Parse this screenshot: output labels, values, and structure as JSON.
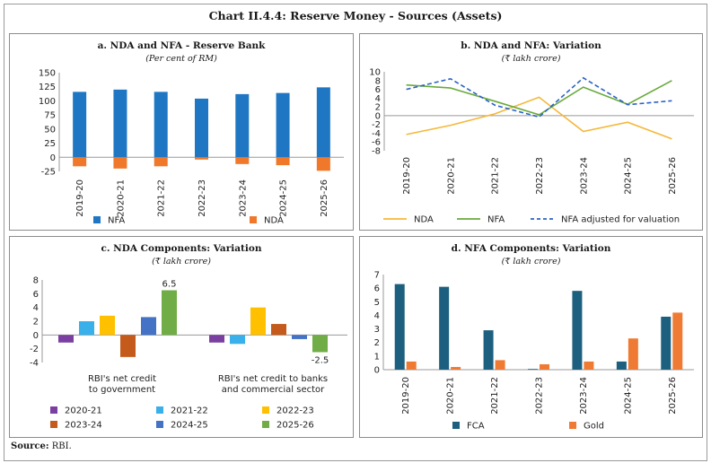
{
  "title": "Chart II.4.4: Reserve Money - Sources (Assets)",
  "source_label": "Source:",
  "source_text": "RBI.",
  "colors": {
    "nfa": "#1f77c4",
    "nda": "#f0782a",
    "nda_line": "#f4b83a",
    "nfa_line": "#6aaa3c",
    "nfa_adj": "#2b62c4",
    "fca": "#1d5f7e",
    "gold": "#ef7a33",
    "c1": "#7a3fa0",
    "c2": "#3ab0ea",
    "c3": "#ffc000",
    "c4": "#c45a1c",
    "c5": "#4472c4",
    "c6": "#70ad47"
  },
  "chart_data": [
    {
      "id": "a",
      "type": "bar",
      "title": "a. NDA and NFA - Reserve Bank",
      "subtitle": "(Per cent of RM)",
      "categories": [
        "2019-20",
        "2020-21",
        "2021-22",
        "2022-23",
        "2023-24",
        "2024-25",
        "2025-26"
      ],
      "series": [
        {
          "name": "NFA",
          "values": [
            116,
            120,
            116,
            104,
            112,
            114,
            124
          ]
        },
        {
          "name": "NDA",
          "values": [
            -16,
            -20,
            -16,
            -4,
            -12,
            -14,
            -24
          ]
        }
      ],
      "yticks": [
        150,
        125,
        100,
        75,
        50,
        25,
        0,
        -25
      ],
      "ylim": [
        -25,
        150
      ]
    },
    {
      "id": "b",
      "type": "line",
      "title": "b. NDA and NFA: Variation",
      "subtitle": "(₹ lakh crore)",
      "categories": [
        "2019-20",
        "2020-21",
        "2021-22",
        "2022-23",
        "2023-24",
        "2024-25",
        "2025-26"
      ],
      "series": [
        {
          "name": "NDA",
          "values": [
            -4.3,
            -2.2,
            0.4,
            4.2,
            -3.6,
            -1.5,
            -5.3
          ]
        },
        {
          "name": "NFA",
          "values": [
            7.0,
            6.3,
            3.3,
            0.2,
            6.5,
            2.6,
            8.0
          ]
        },
        {
          "name": "NFA adjusted for valuation",
          "values": [
            6.0,
            8.4,
            2.4,
            -0.3,
            8.6,
            2.5,
            3.4
          ]
        }
      ],
      "yticks": [
        10,
        8,
        6,
        4,
        2,
        0,
        -2,
        -4,
        -6,
        -8
      ],
      "ylim": [
        -8,
        10
      ]
    },
    {
      "id": "c",
      "type": "bar",
      "title": "c. NDA Components: Variation",
      "subtitle": "(₹ lakh crore)",
      "groups": [
        "RBI's net credit to government",
        "RBI's net credit to banks and commercial sector"
      ],
      "group_lines": [
        [
          "RBI's net credit",
          "to government"
        ],
        [
          "RBI's net credit to banks",
          "and commercial sector"
        ]
      ],
      "series": [
        {
          "name": "2020-21",
          "values": [
            -1.1,
            -1.1
          ]
        },
        {
          "name": "2021-22",
          "values": [
            2.0,
            -1.3
          ]
        },
        {
          "name": "2022-23",
          "values": [
            2.8,
            4.0
          ]
        },
        {
          "name": "2023-24",
          "values": [
            -3.2,
            1.6
          ]
        },
        {
          "name": "2024-25",
          "values": [
            2.6,
            -0.6
          ]
        },
        {
          "name": "2025-26",
          "values": [
            6.5,
            -2.5
          ]
        }
      ],
      "data_labels": [
        "6.5",
        "-2.5"
      ],
      "yticks": [
        8,
        6,
        4,
        2,
        0,
        -2,
        -4
      ],
      "ylim": [
        -4,
        8
      ]
    },
    {
      "id": "d",
      "type": "bar",
      "title": "d. NFA Components: Variation",
      "subtitle": "(₹ lakh crore)",
      "categories": [
        "2019-20",
        "2020-21",
        "2021-22",
        "2022-23",
        "2023-24",
        "2024-25",
        "2025-26"
      ],
      "series": [
        {
          "name": "FCA",
          "values": [
            6.3,
            6.1,
            2.9,
            0.0,
            5.8,
            0.6,
            3.9
          ]
        },
        {
          "name": "Gold",
          "values": [
            0.6,
            0.2,
            0.7,
            0.4,
            0.6,
            2.3,
            4.2
          ]
        }
      ],
      "yticks": [
        7,
        6,
        5,
        4,
        3,
        2,
        1,
        0
      ],
      "ylim": [
        0,
        7
      ]
    }
  ]
}
